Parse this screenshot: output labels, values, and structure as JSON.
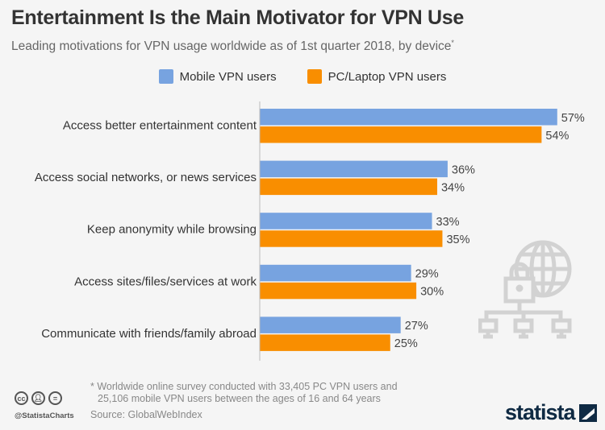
{
  "title": "Entertainment Is the Main Motivator for VPN Use",
  "subtitle": "Leading motivations for VPN usage worldwide as of 1st quarter 2018, by device",
  "subtitle_mark": "*",
  "footnote_line1": "* Worldwide online survey conducted with 33,405 PC VPN users and",
  "footnote_line2": "25,106 mobile VPN users between the ages of 16 and 64 years",
  "source": "Source: GlobalWebIndex",
  "handle": "@StatistaCharts",
  "logo": "statista",
  "icons": {
    "cc": "cc",
    "by": "person",
    "nd": "="
  },
  "chart_data": {
    "type": "bar",
    "orientation": "horizontal",
    "categories": [
      "Access better entertainment content",
      "Access social networks, or news services",
      "Keep anonymity while browsing",
      "Access sites/files/services at work",
      "Communicate with friends/family abroad"
    ],
    "series": [
      {
        "name": "Mobile VPN users",
        "color": "#77a3e0",
        "values": [
          57,
          36,
          33,
          29,
          27
        ]
      },
      {
        "name": "PC/Laptop VPN users",
        "color": "#f98e00",
        "values": [
          54,
          34,
          35,
          30,
          25
        ]
      }
    ],
    "value_suffix": "%",
    "xlim": [
      0,
      60
    ],
    "legend": "top",
    "grid": false
  }
}
